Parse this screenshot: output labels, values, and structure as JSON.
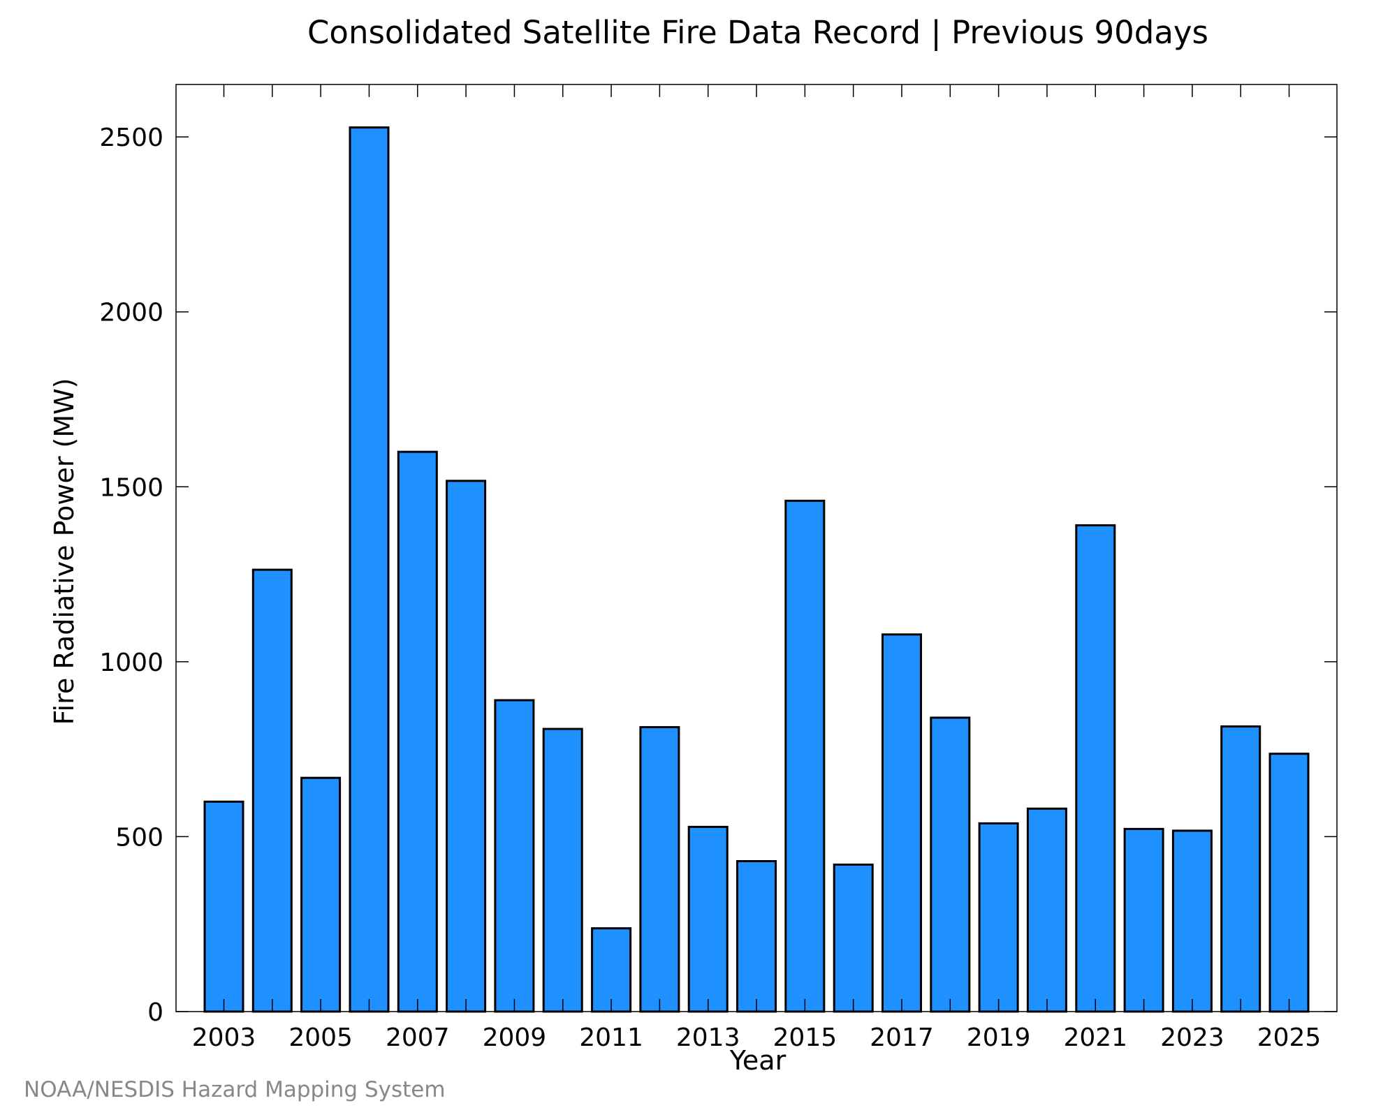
{
  "chart_data": {
    "type": "bar",
    "title": "Consolidated Satellite Fire Data Record | Previous 90days",
    "xlabel": "Year",
    "ylabel": "Fire Radiative Power (MW)",
    "source": "NOAA/NESDIS Hazard Mapping System",
    "categories": [
      "2003",
      "2004",
      "2005",
      "2006",
      "2007",
      "2008",
      "2009",
      "2010",
      "2011",
      "2012",
      "2013",
      "2014",
      "2015",
      "2016",
      "2017",
      "2018",
      "2019",
      "2020",
      "2021",
      "2022",
      "2023",
      "2024",
      "2025"
    ],
    "values": [
      600,
      1263,
      668,
      2527,
      1600,
      1517,
      890,
      808,
      238,
      813,
      528,
      430,
      1460,
      420,
      1078,
      840,
      538,
      580,
      1390,
      522,
      517,
      815,
      737
    ],
    "x_tick_labels": [
      "2003",
      "2005",
      "2007",
      "2009",
      "2011",
      "2013",
      "2015",
      "2017",
      "2019",
      "2021",
      "2023",
      "2025"
    ],
    "y_tick_labels": [
      "0",
      "500",
      "1000",
      "1500",
      "2000",
      "2500"
    ],
    "y_ticks": [
      0,
      500,
      1000,
      1500,
      2000,
      2500
    ],
    "ylim": [
      0,
      2650
    ],
    "grid": false,
    "colors": {
      "bar_fill": "#1e90ff",
      "bar_stroke": "#000000",
      "source_text": "#888888"
    }
  }
}
